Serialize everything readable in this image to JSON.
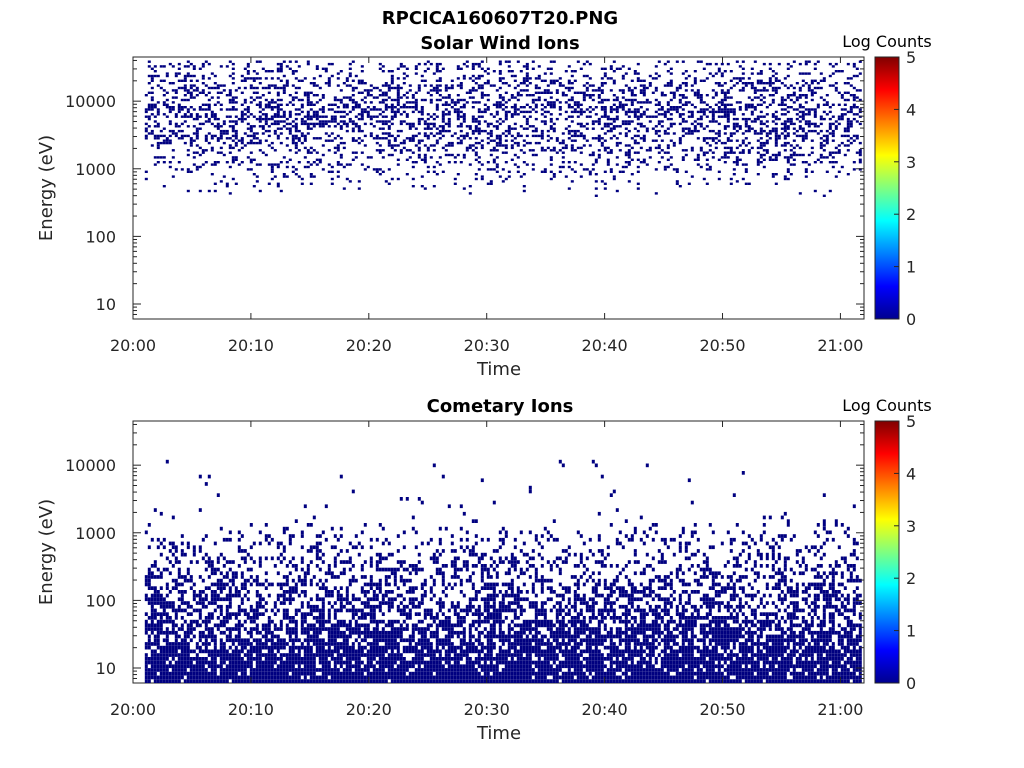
{
  "figure": {
    "title": "RPCICA160607T20.PNG"
  },
  "colors": {
    "axis": "#262626",
    "low_count": "#00008b"
  },
  "chart_data": [
    {
      "type": "heatmap",
      "title": "Solar Wind Ions",
      "xlabel": "Time",
      "ylabel": "Energy (eV)",
      "x_range": [
        "20:00",
        "21:02"
      ],
      "x_ticks": [
        "20:00",
        "20:10",
        "20:20",
        "20:30",
        "20:40",
        "20:50",
        "21:00"
      ],
      "y_scale": "log",
      "y_range": [
        6,
        45000
      ],
      "y_ticks": [
        "10",
        "100",
        "1000",
        "10000"
      ],
      "data_x_range": [
        "20:01",
        "21:02"
      ],
      "data_energy_range_eV": [
        300,
        40000
      ],
      "dominant_log_counts": 0,
      "colorbar": {
        "label": "Log Counts",
        "min": 0,
        "max": 5,
        "ticks": [
          "0",
          "1",
          "2",
          "3",
          "4",
          "5"
        ],
        "colormap": "jet"
      }
    },
    {
      "type": "heatmap",
      "title": "Cometary Ions",
      "xlabel": "Time",
      "ylabel": "Energy (eV)",
      "x_range": [
        "20:00",
        "21:02"
      ],
      "x_ticks": [
        "20:00",
        "20:10",
        "20:20",
        "20:30",
        "20:40",
        "20:50",
        "21:00"
      ],
      "y_scale": "log",
      "y_range": [
        6,
        45000
      ],
      "y_ticks": [
        "10",
        "100",
        "1000",
        "10000"
      ],
      "data_x_range": [
        "20:01",
        "21:02"
      ],
      "data_energy_range_eV": [
        6,
        12000
      ],
      "dominant_log_counts": 0,
      "colorbar": {
        "label": "Log Counts",
        "min": 0,
        "max": 5,
        "ticks": [
          "0",
          "1",
          "2",
          "3",
          "4",
          "5"
        ],
        "colormap": "jet"
      }
    }
  ]
}
